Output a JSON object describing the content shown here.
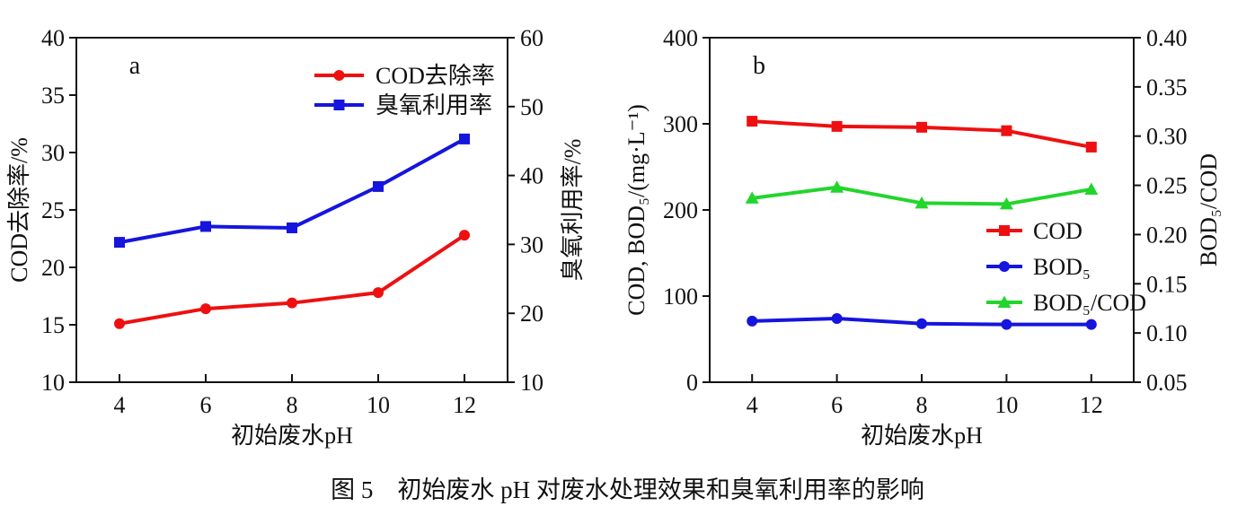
{
  "page": {
    "background": "#ffffff",
    "caption": "图 5　初始废水 pH 对废水处理效果和臭氧利用率的影响"
  },
  "colors": {
    "red": "#ee1010",
    "blue": "#1515dd",
    "green": "#22d52c",
    "axis": "#111111"
  },
  "chart_data": [
    {
      "id": "a",
      "panel_label": "a",
      "type": "line",
      "grid": false,
      "legend_position": "upper-right-inside",
      "x": {
        "label": "初始废水pH",
        "range": [
          3,
          13
        ],
        "ticks": [
          "4",
          "6",
          "8",
          "10",
          "12"
        ]
      },
      "y_left": {
        "label": "COD去除率/%",
        "range": [
          10,
          40
        ],
        "ticks": [
          "10",
          "15",
          "20",
          "25",
          "30",
          "35",
          "40"
        ]
      },
      "y_right": {
        "label": "臭氧利用率/%",
        "range": [
          10,
          60
        ],
        "ticks": [
          "10",
          "20",
          "30",
          "40",
          "50",
          "60"
        ]
      },
      "series": [
        {
          "name": "COD去除率",
          "axis": "left",
          "color": "#ee1010",
          "marker": "circle",
          "x": [
            4,
            6,
            8,
            10,
            12
          ],
          "values": [
            15.1,
            16.4,
            16.9,
            17.8,
            22.8
          ]
        },
        {
          "name": "臭氧利用率",
          "axis": "right",
          "color": "#1515dd",
          "marker": "square",
          "x": [
            4,
            6,
            8,
            10,
            12
          ],
          "values": [
            30.3,
            32.6,
            32.4,
            38.4,
            45.3
          ]
        }
      ]
    },
    {
      "id": "b",
      "panel_label": "b",
      "type": "line",
      "grid": false,
      "legend_position": "middle-right-inside",
      "x": {
        "label": "初始废水pH",
        "range": [
          3,
          13
        ],
        "ticks": [
          "4",
          "6",
          "8",
          "10",
          "12"
        ]
      },
      "y_left": {
        "label": "COD, BOD₅/(mg·L⁻¹)",
        "range": [
          0,
          400
        ],
        "ticks": [
          "0",
          "100",
          "200",
          "300",
          "400"
        ]
      },
      "y_right": {
        "label": "BOD₅/COD",
        "range": [
          0.05,
          0.4
        ],
        "ticks": [
          "0.05",
          "0.10",
          "0.15",
          "0.20",
          "0.25",
          "0.30",
          "0.35",
          "0.40"
        ]
      },
      "series": [
        {
          "name": "COD",
          "axis": "left",
          "color": "#ee1010",
          "marker": "square",
          "x": [
            4,
            6,
            8,
            10,
            12
          ],
          "values": [
            303,
            297,
            296,
            292,
            273
          ]
        },
        {
          "name": "BOD₅",
          "axis": "left",
          "color": "#1515dd",
          "marker": "circle",
          "x": [
            4,
            6,
            8,
            10,
            12
          ],
          "values": [
            71,
            74,
            68,
            67,
            67
          ]
        },
        {
          "name": "BOD₅/COD",
          "axis": "right",
          "color": "#22d52c",
          "marker": "triangle",
          "x": [
            4,
            6,
            8,
            10,
            12
          ],
          "values": [
            0.237,
            0.248,
            0.232,
            0.231,
            0.246
          ]
        }
      ]
    }
  ]
}
